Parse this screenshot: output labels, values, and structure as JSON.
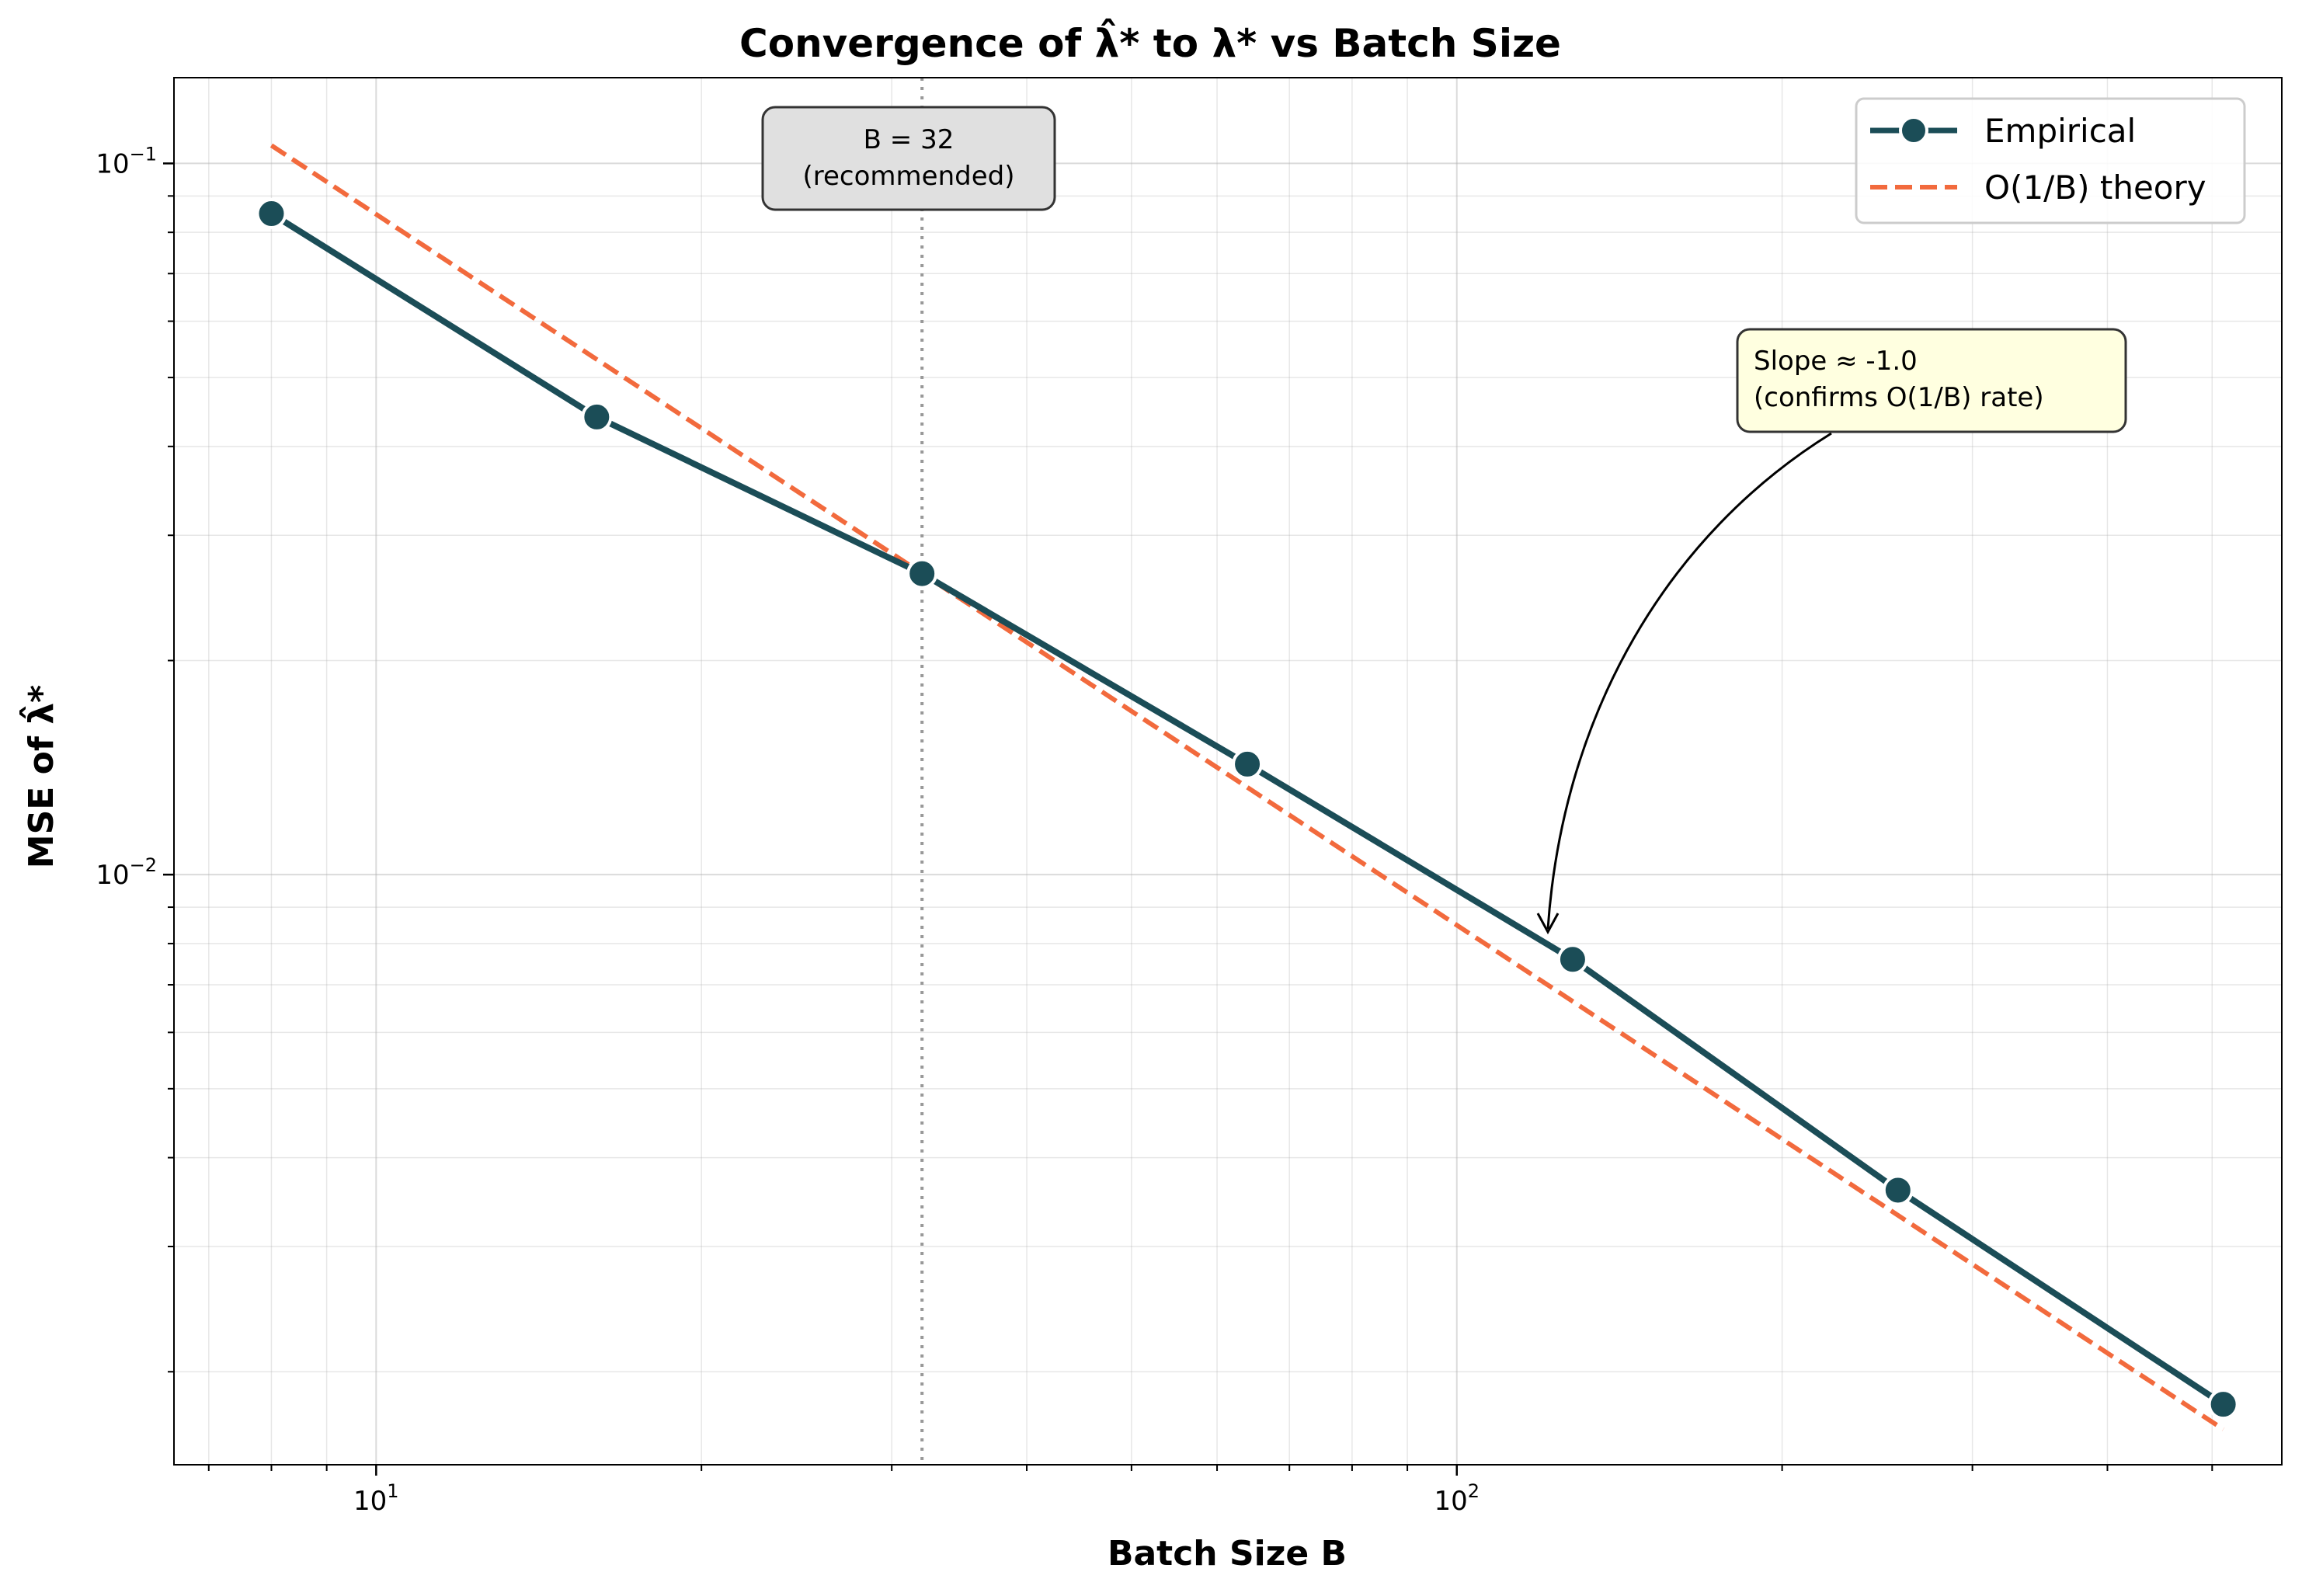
{
  "chart_data": {
    "type": "line",
    "title": "Convergence of λ̂* to λ* vs Batch Size",
    "xlabel": "Batch Size B",
    "ylabel": "MSE of λ̂*",
    "xscale": "log",
    "yscale": "log",
    "xlim": [
      6.5,
      580
    ],
    "ylim": [
      0.00148,
      0.132
    ],
    "grid": true,
    "legend_position": "top-right",
    "x_tick_labels": [
      {
        "value": 10,
        "base": "10",
        "exp": "1"
      },
      {
        "value": 100,
        "base": "10",
        "exp": "2"
      }
    ],
    "y_tick_labels": [
      {
        "value": 0.1,
        "base": "10",
        "exp": "−1"
      },
      {
        "value": 0.01,
        "base": "10",
        "exp": "−2"
      }
    ],
    "series": [
      {
        "name": "Empirical",
        "style": "solid-markers",
        "color": "#1b4d57",
        "x": [
          8,
          16,
          32,
          64,
          128,
          256,
          512
        ],
        "y": [
          0.085,
          0.044,
          0.0265,
          0.0143,
          0.0076,
          0.0036,
          0.0018
        ]
      },
      {
        "name": "O(1/B) theory",
        "style": "dashed",
        "color": "#f26a3d",
        "x": [
          8,
          512
        ],
        "y": [
          0.106,
          0.00166
        ]
      }
    ],
    "vline": {
      "x": 32,
      "color": "#999999"
    },
    "annotations": [
      {
        "id": "recommended",
        "lines": [
          "B = 32",
          "(recommended)"
        ],
        "x": 32,
        "bg": "#e0e0e0"
      },
      {
        "id": "slope",
        "lines": [
          "Slope ≈ -1.0",
          "(confirms O(1/B) rate)"
        ],
        "x": 128,
        "y": 0.0076,
        "bg": "#ffffe0"
      }
    ]
  }
}
